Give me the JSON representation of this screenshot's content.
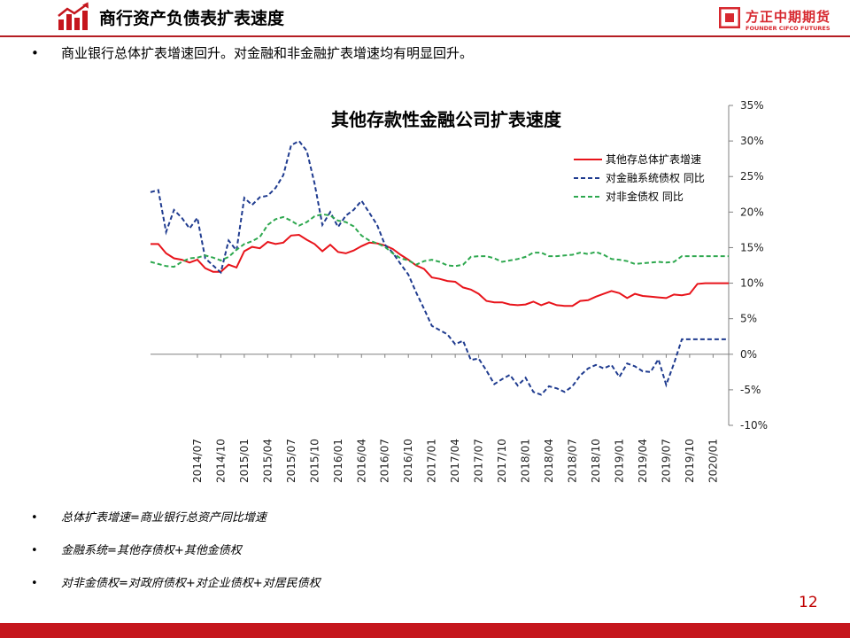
{
  "header": {
    "title": "商行资产负债表扩表速度",
    "logo_cn": "方正中期期货",
    "logo_en": "FOUNDER CIFCO FUTURES"
  },
  "bullets": {
    "main": "商业银行总体扩表增速回升。对金融和非金融扩表增速均有明显回升。",
    "notes": [
      "总体扩表增速=商业银行总资产同比增速",
      "金融系统=其他存债权+其他金债权",
      "对非金债权=对政府债权+对企业债权+对居民债权"
    ]
  },
  "page_number": "12",
  "colors": {
    "brand": "#c5161d",
    "total": "#e8141b",
    "financial": "#1f3b8f",
    "nonfinancial": "#2ea84f"
  },
  "chart_data": {
    "type": "line",
    "title": "其他存款性金融公司扩表速度",
    "ylim": [
      -10,
      35
    ],
    "y_ticks": [
      -10,
      -5,
      0,
      5,
      10,
      15,
      20,
      25,
      30,
      35
    ],
    "y_tick_labels": [
      "-10%",
      "-5%",
      "0%",
      "5%",
      "10%",
      "15%",
      "20%",
      "25%",
      "30%",
      "35%"
    ],
    "y_axis_side": "right",
    "legend_position": "top-right",
    "grid": false,
    "x": [
      "2014/01",
      "2014/02",
      "2014/03",
      "2014/04",
      "2014/05",
      "2014/06",
      "2014/07",
      "2014/08",
      "2014/09",
      "2014/10",
      "2014/11",
      "2014/12",
      "2015/01",
      "2015/02",
      "2015/03",
      "2015/04",
      "2015/05",
      "2015/06",
      "2015/07",
      "2015/08",
      "2015/09",
      "2015/10",
      "2015/11",
      "2015/12",
      "2016/01",
      "2016/02",
      "2016/03",
      "2016/04",
      "2016/05",
      "2016/06",
      "2016/07",
      "2016/08",
      "2016/09",
      "2016/10",
      "2016/11",
      "2016/12",
      "2017/01",
      "2017/02",
      "2017/03",
      "2017/04",
      "2017/05",
      "2017/06",
      "2017/07",
      "2017/08",
      "2017/09",
      "2017/10",
      "2017/11",
      "2017/12",
      "2018/01",
      "2018/02",
      "2018/03",
      "2018/04",
      "2018/05",
      "2018/06",
      "2018/07",
      "2018/08",
      "2018/09",
      "2018/10",
      "2018/11",
      "2018/12",
      "2019/01",
      "2019/02",
      "2019/03",
      "2019/04",
      "2019/05",
      "2019/06",
      "2019/07",
      "2019/08",
      "2019/09",
      "2019/10",
      "2019/11",
      "2019/12",
      "2020/01",
      "2020/02",
      "2020/03"
    ],
    "x_tick_labels": [
      "2014/07",
      "2014/10",
      "2015/01",
      "2015/04",
      "2015/07",
      "2015/10",
      "2016/01",
      "2016/04",
      "2016/07",
      "2016/10",
      "2017/01",
      "2017/04",
      "2017/07",
      "2017/10",
      "2018/01",
      "2018/04",
      "2018/07",
      "2018/10",
      "2019/01",
      "2019/04",
      "2019/07",
      "2019/10",
      "2020/01"
    ],
    "series": [
      {
        "name": "其他存总体扩表增速",
        "style": "solid",
        "color": "#e8141b",
        "values": [
          15.5,
          15.5,
          14.2,
          13.5,
          13.3,
          12.9,
          13.3,
          12.1,
          11.6,
          11.6,
          12.6,
          12.2,
          14.5,
          15.1,
          14.9,
          15.8,
          15.5,
          15.7,
          16.7,
          16.8,
          16.1,
          15.5,
          14.5,
          15.4,
          14.4,
          14.2,
          14.6,
          15.2,
          15.7,
          15.6,
          15.3,
          14.8,
          14.0,
          13.3,
          12.5,
          12.0,
          10.8,
          10.6,
          10.3,
          10.2,
          9.4,
          9.1,
          8.5,
          7.5,
          7.3,
          7.3,
          7.0,
          6.9,
          7.0,
          7.4,
          6.9,
          7.3,
          6.9,
          6.8,
          6.8,
          7.5,
          7.6,
          8.1,
          8.5,
          8.9,
          8.6,
          7.9,
          8.5,
          8.2,
          8.1,
          8.0,
          7.9,
          8.4,
          8.3,
          8.5,
          9.9,
          10.0,
          10.0,
          10.0,
          10.0
        ]
      },
      {
        "name": "对金融系统债权 同比",
        "style": "dashed",
        "color": "#1f3b8f",
        "values": [
          22.8,
          23.1,
          17.2,
          20.3,
          19.2,
          17.7,
          19.2,
          13.5,
          12.5,
          11.5,
          16.0,
          14.6,
          22.0,
          21.0,
          22.1,
          22.3,
          23.4,
          25.2,
          29.4,
          30.0,
          28.6,
          24.0,
          18.2,
          20.0,
          17.9,
          19.5,
          20.3,
          21.6,
          19.9,
          18.2,
          15.4,
          14.3,
          12.7,
          11.2,
          8.7,
          6.4,
          4.0,
          3.4,
          2.8,
          1.4,
          1.9,
          -0.8,
          -0.6,
          -2.3,
          -4.2,
          -3.5,
          -2.9,
          -4.4,
          -3.3,
          -5.3,
          -5.7,
          -4.5,
          -4.8,
          -5.3,
          -4.5,
          -3.0,
          -2.0,
          -1.5,
          -2.0,
          -1.5,
          -3.2,
          -1.3,
          -1.7,
          -2.4,
          -2.5,
          -0.7,
          -4.3,
          -1.3,
          2.1,
          2.1,
          2.1,
          2.1,
          2.1,
          2.1,
          2.1
        ]
      },
      {
        "name": "对非金债权 同比",
        "style": "dashed",
        "color": "#2ea84f",
        "values": [
          13.0,
          12.7,
          12.4,
          12.3,
          13.0,
          13.5,
          13.6,
          13.9,
          13.6,
          13.2,
          13.7,
          14.7,
          15.5,
          15.9,
          16.5,
          18.2,
          19.0,
          19.3,
          18.8,
          18.1,
          18.6,
          19.4,
          19.7,
          19.5,
          18.8,
          18.6,
          18.0,
          16.7,
          16.0,
          15.6,
          15.1,
          14.2,
          13.5,
          13.2,
          12.6,
          13.1,
          13.3,
          13.0,
          12.5,
          12.4,
          12.6,
          13.7,
          13.8,
          13.8,
          13.5,
          13.0,
          13.2,
          13.4,
          13.7,
          14.3,
          14.3,
          13.8,
          13.8,
          13.9,
          14.0,
          14.3,
          14.1,
          14.4,
          14.0,
          13.4,
          13.3,
          13.1,
          12.7,
          12.8,
          12.9,
          13.0,
          12.9,
          13.0,
          13.8,
          13.8,
          13.8,
          13.8,
          13.8,
          13.8,
          13.8
        ]
      }
    ]
  }
}
